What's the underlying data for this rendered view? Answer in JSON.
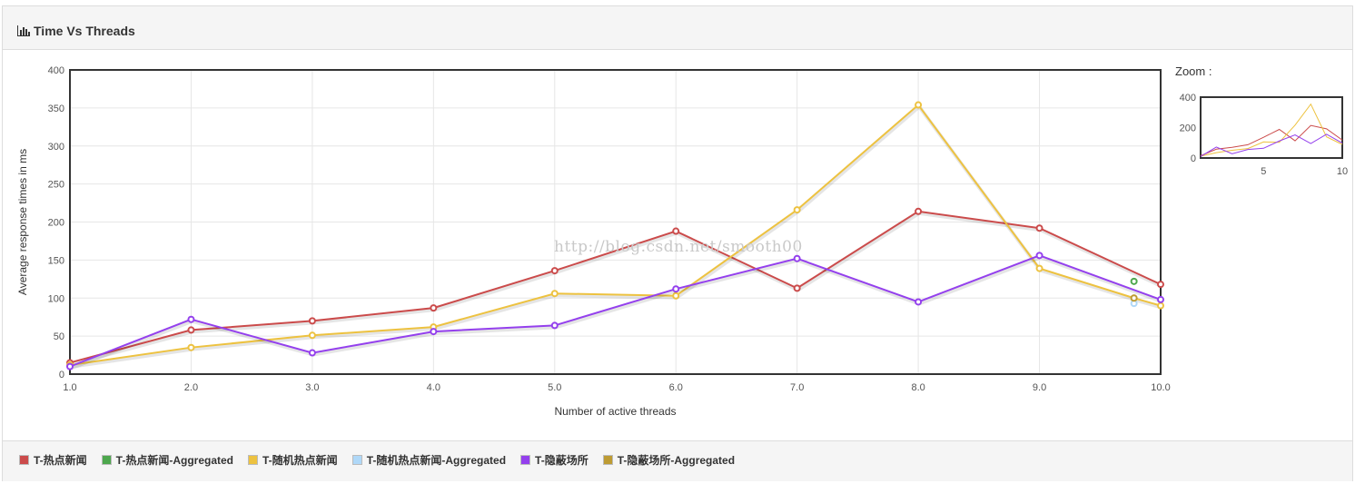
{
  "panel": {
    "title": "Time Vs Threads",
    "title_icon": "bar-chart-icon"
  },
  "zoom": {
    "label": "Zoom :"
  },
  "watermark": "http://blog.csdn.net/smooth00",
  "chart_data": {
    "type": "line",
    "title": "Time Vs Threads",
    "xlabel": "Number of active threads",
    "ylabel": "Average response times in ms",
    "xlim": [
      1,
      10
    ],
    "ylim": [
      0,
      400
    ],
    "x_ticks": [
      "1.0",
      "2.0",
      "3.0",
      "4.0",
      "5.0",
      "6.0",
      "7.0",
      "8.0",
      "9.0",
      "10.0"
    ],
    "y_ticks": [
      "0",
      "50",
      "100",
      "150",
      "200",
      "250",
      "300",
      "350",
      "400"
    ],
    "grid": true,
    "legend_placement": "bottom",
    "series": [
      {
        "name": "T-热点新闻",
        "color": "#cb4b4b",
        "x": [
          1,
          2,
          3,
          4,
          5,
          6,
          7,
          8,
          9,
          10
        ],
        "y": [
          15,
          58,
          70,
          87,
          136,
          188,
          113,
          214,
          192,
          118
        ]
      },
      {
        "name": "T-热点新闻-Aggregated",
        "color": "#4da74d",
        "x": [
          9.78
        ],
        "y": [
          122
        ]
      },
      {
        "name": "T-随机热点新闻",
        "color": "#edc240",
        "x": [
          1,
          2,
          3,
          4,
          5,
          6,
          7,
          8,
          9,
          9.78,
          10
        ],
        "y": [
          12,
          35,
          51,
          62,
          106,
          103,
          216,
          354,
          139,
          100,
          90
        ]
      },
      {
        "name": "T-随机热点新闻-Aggregated",
        "color": "#afd8f8",
        "x": [
          9.78
        ],
        "y": [
          93
        ]
      },
      {
        "name": "T-隐蔽场所",
        "color": "#9440ed",
        "x": [
          1,
          2,
          3,
          4,
          5,
          6,
          7,
          8,
          9,
          10
        ],
        "y": [
          10,
          72,
          28,
          56,
          64,
          112,
          152,
          95,
          156,
          98
        ]
      },
      {
        "name": "T-隐蔽场所-Aggregated",
        "color": "#bd9b33",
        "x": [
          9.78
        ],
        "y": [
          100
        ]
      }
    ],
    "zoom_overview": {
      "ylim": [
        0,
        400
      ],
      "xlim": [
        1,
        10
      ],
      "y_ticks": [
        "0",
        "200",
        "400"
      ],
      "x_ticks": [
        "5",
        "10"
      ]
    }
  }
}
